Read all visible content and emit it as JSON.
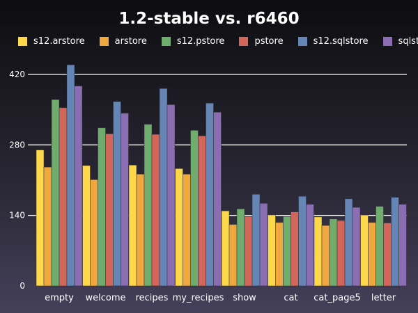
{
  "chart_data": {
    "type": "bar",
    "title": "1.2-stable vs. r6460",
    "xlabel": "",
    "ylabel": "",
    "ylim": [
      0,
      420
    ],
    "yticks": [
      0,
      140,
      280,
      420
    ],
    "grid": true,
    "legend_position": "top",
    "categories": [
      "empty",
      "welcome",
      "recipes",
      "my_recipes",
      "show",
      "cat",
      "cat_page5",
      "letter"
    ],
    "series": [
      {
        "name": "s12.arstore",
        "color": "#fdd84a",
        "values": [
          270,
          239,
          240,
          233,
          149,
          141,
          137,
          140
        ]
      },
      {
        "name": "arstore",
        "color": "#eea83f",
        "values": [
          236,
          211,
          222,
          222,
          122,
          126,
          120,
          126
        ]
      },
      {
        "name": "s12.pstore",
        "color": "#6fac6d",
        "values": [
          370,
          314,
          321,
          309,
          153,
          138,
          133,
          158
        ]
      },
      {
        "name": "pstore",
        "color": "#d3665b",
        "values": [
          354,
          302,
          301,
          298,
          138,
          147,
          130,
          125
        ]
      },
      {
        "name": "s12.sqlstore",
        "color": "#6586b4",
        "values": [
          439,
          366,
          392,
          363,
          182,
          178,
          173,
          176
        ]
      },
      {
        "name": "sqlstore",
        "color": "#8b6eb2",
        "values": [
          397,
          343,
          360,
          345,
          164,
          162,
          156,
          162
        ]
      }
    ]
  }
}
